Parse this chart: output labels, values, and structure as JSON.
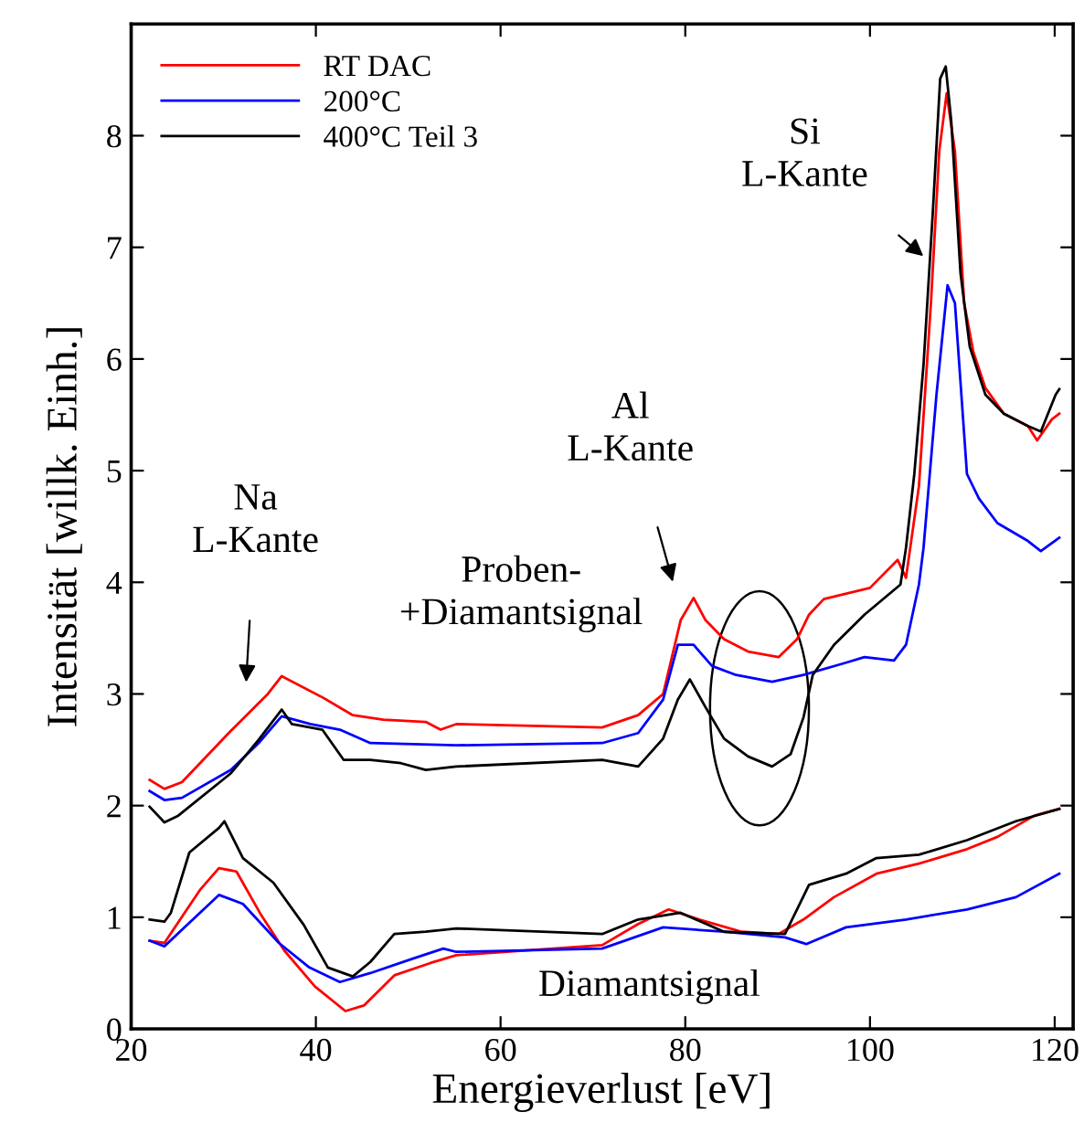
{
  "chart_data": {
    "type": "line",
    "xlabel": "Energieverlust [eV]",
    "ylabel": "Intensität [willk. Einh.]",
    "xlim": [
      20,
      122
    ],
    "xticks": [
      20,
      40,
      60,
      80,
      100,
      120
    ],
    "ylim": [
      0,
      9
    ],
    "yticks": [
      0,
      1,
      2,
      3,
      4,
      5,
      6,
      7,
      8
    ],
    "grid": false,
    "legend": "top left",
    "marker": "none",
    "line_style": "solid",
    "series": [
      {
        "name": "RT DAC",
        "color": "#ff0000",
        "x": [
          22,
          23.6,
          25.5,
          30.8,
          34.8,
          36.3,
          40.7,
          44,
          47.3,
          51.9,
          53.5,
          55.2,
          71,
          74.9,
          77.6,
          79.5,
          80.9,
          82.2,
          84.2,
          86.8,
          90.1,
          92.1,
          93.4,
          95,
          100,
          103,
          103.9,
          105.3,
          106.6,
          107.5,
          108.3,
          109.2,
          110.2,
          111.2,
          112.5,
          114.5,
          117.1,
          118.1,
          119.7,
          120.5
        ],
        "values": [
          2.23,
          2.15,
          2.21,
          2.67,
          3.0,
          3.16,
          2.97,
          2.81,
          2.77,
          2.75,
          2.68,
          2.73,
          2.7,
          2.81,
          3.0,
          3.66,
          3.86,
          3.66,
          3.49,
          3.38,
          3.33,
          3.49,
          3.71,
          3.85,
          3.95,
          4.2,
          4.04,
          4.86,
          6.5,
          7.86,
          8.38,
          7.86,
          6.5,
          6.06,
          5.74,
          5.51,
          5.4,
          5.27,
          5.46,
          5.51
        ]
      },
      {
        "name": "200°C",
        "color": "#0000ff",
        "x": [
          22,
          23.6,
          25.5,
          30.8,
          33.8,
          36.3,
          39.4,
          42.6,
          45.9,
          55.2,
          71,
          74.9,
          77.6,
          79.2,
          80.9,
          82.9,
          85.5,
          89.4,
          92.8,
          97.4,
          99.4,
          102.6,
          103.9,
          105.3,
          105.8,
          107.2,
          108.4,
          109.2,
          110.5,
          111.8,
          113.8,
          117.1,
          118.5,
          120.5
        ],
        "values": [
          2.13,
          2.05,
          2.07,
          2.32,
          2.56,
          2.8,
          2.73,
          2.68,
          2.56,
          2.54,
          2.56,
          2.65,
          2.95,
          3.44,
          3.44,
          3.25,
          3.17,
          3.11,
          3.17,
          3.28,
          3.33,
          3.3,
          3.44,
          3.98,
          4.31,
          5.68,
          6.66,
          6.5,
          4.97,
          4.75,
          4.53,
          4.37,
          4.28,
          4.4
        ]
      },
      {
        "name": "400°C Teil 3",
        "color": "#000000",
        "x": [
          22,
          23.6,
          25.1,
          30.8,
          33.8,
          36.3,
          37.4,
          40.7,
          43,
          45.9,
          49.2,
          51.9,
          55.2,
          71,
          74.9,
          77.6,
          79.2,
          80.5,
          82.2,
          84.2,
          86.8,
          89.4,
          91.4,
          92.8,
          93.8,
          96.1,
          99.4,
          103.3,
          103.9,
          104.8,
          105.8,
          106.8,
          107.6,
          108.2,
          108.8,
          109.8,
          110.8,
          112.5,
          114.5,
          117.1,
          118.5,
          120.1,
          120.5
        ],
        "values": [
          1.99,
          1.85,
          1.91,
          2.29,
          2.59,
          2.86,
          2.73,
          2.68,
          2.41,
          2.41,
          2.38,
          2.32,
          2.35,
          2.41,
          2.35,
          2.6,
          2.95,
          3.13,
          2.88,
          2.6,
          2.44,
          2.35,
          2.46,
          2.79,
          3.17,
          3.44,
          3.71,
          3.98,
          4.31,
          4.97,
          5.95,
          7.31,
          8.51,
          8.62,
          8.13,
          6.77,
          6.11,
          5.68,
          5.51,
          5.4,
          5.35,
          5.68,
          5.73
        ]
      },
      {
        "color": "#ff0000",
        "x": [
          22,
          23.6,
          27.5,
          29.5,
          31.4,
          34,
          36.6,
          39.9,
          43.2,
          45.2,
          48.5,
          52.4,
          55.2,
          71,
          74.9,
          78.2,
          81.5,
          86.1,
          90.1,
          92.8,
          96.1,
          100.7,
          105.3,
          110.5,
          113.8,
          117.8,
          120.5
        ],
        "values": [
          0.79,
          0.77,
          1.25,
          1.44,
          1.41,
          1.03,
          0.7,
          0.38,
          0.16,
          0.21,
          0.48,
          0.59,
          0.66,
          0.75,
          0.94,
          1.07,
          0.98,
          0.87,
          0.85,
          0.98,
          1.18,
          1.39,
          1.48,
          1.61,
          1.72,
          1.91,
          1.97
        ]
      },
      {
        "color": "#0000ff",
        "x": [
          22,
          23.6,
          29.5,
          32.1,
          36,
          39.3,
          42.6,
          45.9,
          50.5,
          53.8,
          55.2,
          71,
          77.6,
          84.2,
          90.8,
          93.1,
          97.4,
          103.9,
          110.5,
          115.8,
          120.5
        ],
        "values": [
          0.79,
          0.74,
          1.2,
          1.12,
          0.77,
          0.55,
          0.42,
          0.5,
          0.63,
          0.72,
          0.69,
          0.72,
          0.91,
          0.87,
          0.82,
          0.76,
          0.91,
          0.98,
          1.07,
          1.18,
          1.39
        ]
      },
      {
        "color": "#000000",
        "x": [
          22,
          23.6,
          24.3,
          26.3,
          29.5,
          30.1,
          32.1,
          35.4,
          38.7,
          41.3,
          44,
          45.9,
          48.5,
          51.9,
          55.2,
          71,
          74.9,
          79.5,
          84.2,
          90.8,
          93.4,
          97.4,
          100.7,
          105.3,
          110.5,
          115.8,
          120.5
        ],
        "values": [
          0.98,
          0.96,
          1.04,
          1.58,
          1.8,
          1.86,
          1.53,
          1.31,
          0.93,
          0.55,
          0.47,
          0.6,
          0.85,
          0.87,
          0.9,
          0.85,
          0.98,
          1.04,
          0.87,
          0.85,
          1.29,
          1.39,
          1.53,
          1.56,
          1.69,
          1.86,
          1.97
        ]
      }
    ],
    "annotations": [
      "Na\nL-Kante",
      "Al\nL-Kante",
      "Si\nL-Kante",
      "Proben-\n+Diamantsignal",
      "Diamantsignal"
    ]
  }
}
